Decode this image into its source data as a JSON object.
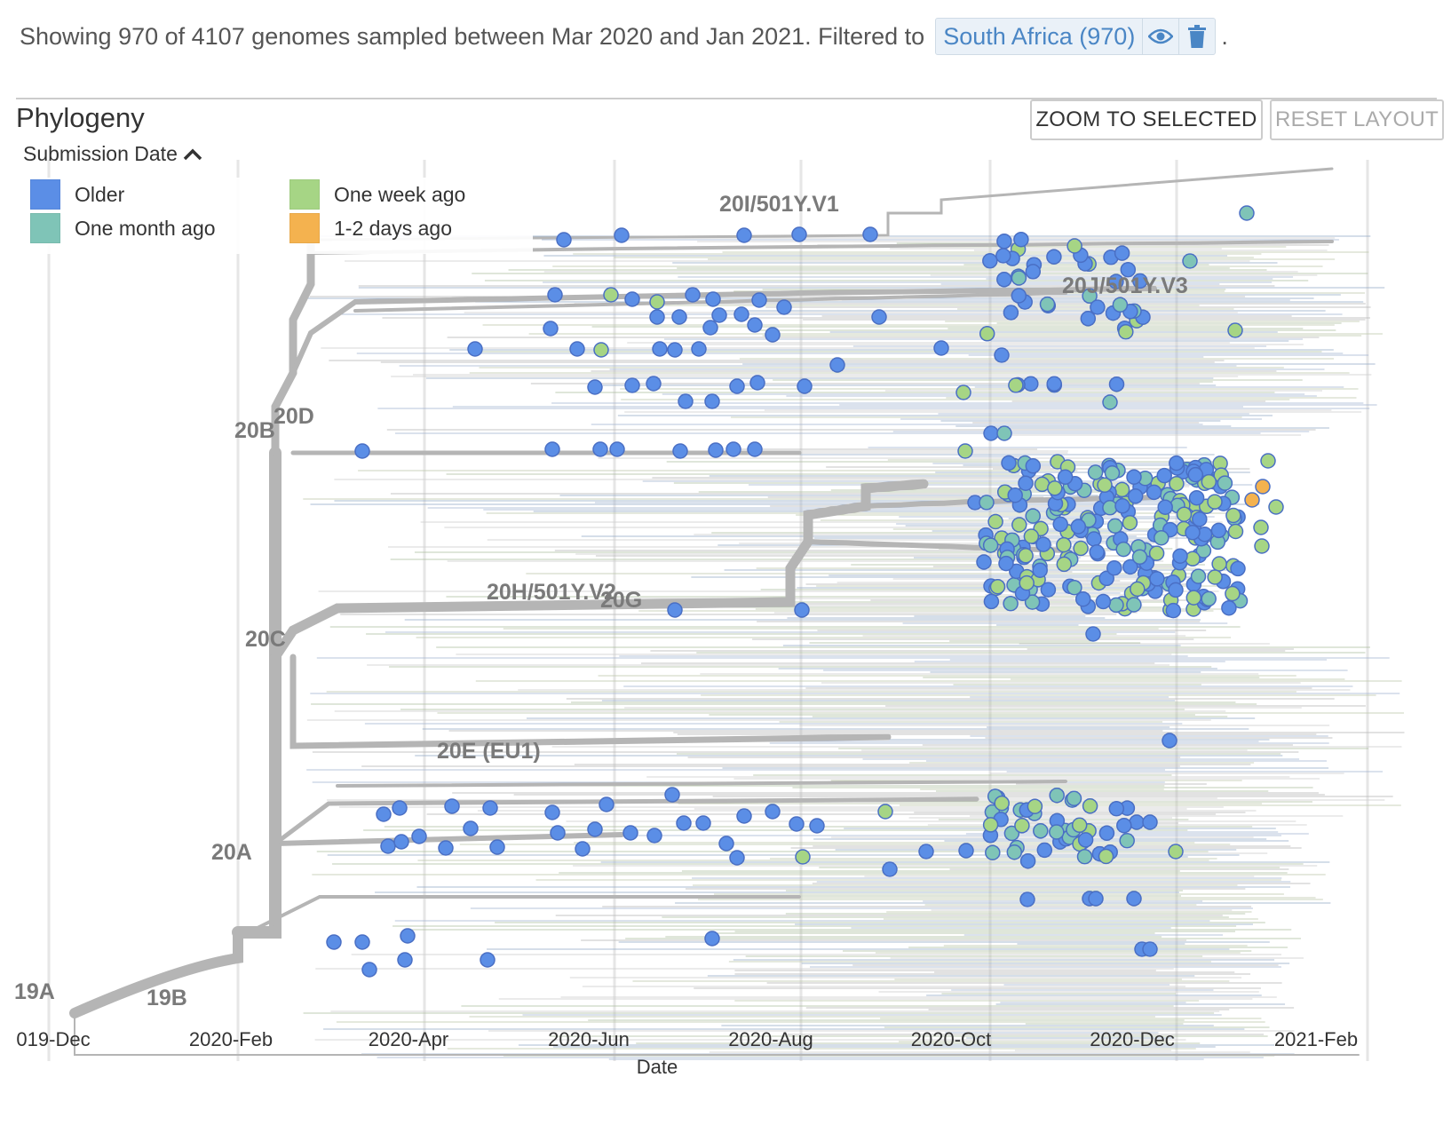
{
  "summary": {
    "text": "Showing 970 of 4107 genomes sampled between Mar 2020 and Jan 2021. Filtered to",
    "filter_label": "South Africa (970)",
    "trailing": "."
  },
  "panel": {
    "title": "Phylogeny",
    "zoom_button": "ZOOM TO SELECTED",
    "reset_button": "RESET LAYOUT"
  },
  "legend": {
    "title": "Submission Date",
    "items": [
      {
        "label": "Older",
        "color": "#5b8ee6"
      },
      {
        "label": "One month ago",
        "color": "#7fc4b7"
      },
      {
        "label": "One week ago",
        "color": "#a6d585"
      },
      {
        "label": "1-2 days ago",
        "color": "#f4b24f"
      }
    ]
  },
  "axis": {
    "xlabel": "Date",
    "ticks": [
      "019-Dec",
      "2020-Feb",
      "2020-Apr",
      "2020-Jun",
      "2020-Aug",
      "2020-Oct",
      "2020-Dec",
      "2021-Feb"
    ]
  },
  "clades": [
    "20I/501Y.V1",
    "20J/501Y.V3",
    "20D",
    "20B",
    "20H/501Y.V2",
    "20G",
    "20C",
    "20E (EU1)",
    "20A",
    "19A",
    "19B"
  ]
}
